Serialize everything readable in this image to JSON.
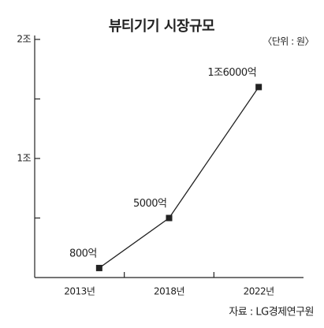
{
  "chart_data": {
    "type": "line",
    "title": "뷰티기기 시장규모",
    "subtitle": "〈단위 : 원〉",
    "source": "자료 : LG경제연구원",
    "categories": [
      "2013년",
      "2018년",
      "2022년"
    ],
    "values": [
      800,
      5000,
      16000
    ],
    "value_labels": [
      "800억",
      "5000억",
      "1조6000억"
    ],
    "color": "#222222",
    "ylim": [
      0,
      20000
    ],
    "yticks": [
      {
        "value": 10000,
        "label": "1조"
      },
      {
        "value": 20000,
        "label": "2조"
      }
    ],
    "minor_yticks": [
      5000,
      15000
    ]
  }
}
